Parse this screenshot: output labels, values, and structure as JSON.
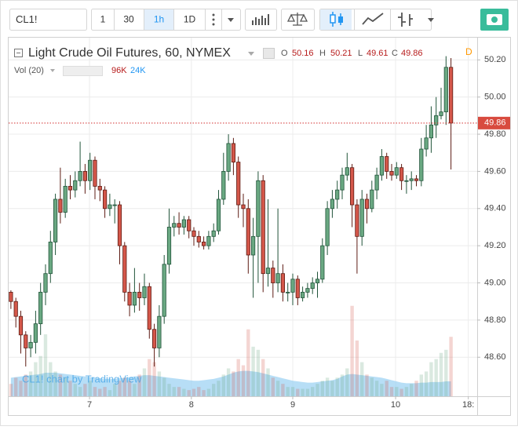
{
  "toolbar": {
    "symbol": "CL1!",
    "intervals": [
      "1",
      "30",
      "1h",
      "1D"
    ],
    "active_interval": "1h"
  },
  "chart_data": {
    "type": "candlestick",
    "title": "Light Crude Oil Futures, 60, NYMEX",
    "session_badge": "D",
    "ohlc_letters": [
      "O",
      "H",
      "L",
      "C"
    ],
    "watermark": "CL1! chart by TradingView",
    "up_color": "#6aa882",
    "up_edge": "#21543a",
    "down_color": "#d4574a",
    "down_edge": "#5e1c14",
    "grid": true,
    "x": [
      0,
      1,
      2,
      3,
      4,
      5,
      6,
      7,
      8,
      9,
      10,
      11,
      12,
      13,
      14,
      15,
      16,
      17,
      18,
      19,
      20,
      21,
      22,
      23,
      24,
      25,
      26,
      27,
      28,
      29,
      30,
      31,
      32,
      33,
      34,
      35,
      36,
      37,
      38,
      39,
      40,
      41,
      42,
      43,
      44,
      45,
      46,
      47,
      48,
      49,
      50,
      51,
      52,
      53,
      54,
      55,
      56,
      57,
      58,
      59,
      60,
      61,
      62,
      63,
      64,
      65,
      66,
      67,
      68,
      69,
      70,
      71,
      72,
      73,
      74,
      75,
      76,
      77,
      78,
      79,
      80,
      81,
      82,
      83,
      84,
      85,
      86,
      87,
      88,
      89
    ],
    "open": [
      48.95,
      48.9,
      48.82,
      48.72,
      48.65,
      48.68,
      48.78,
      48.95,
      49.05,
      49.22,
      49.45,
      49.38,
      49.52,
      49.5,
      49.55,
      49.6,
      49.55,
      49.66,
      49.52,
      49.5,
      49.4,
      49.42,
      49.42,
      49.2,
      48.95,
      48.88,
      48.95,
      48.92,
      48.98,
      48.75,
      48.65,
      48.82,
      49.1,
      49.3,
      49.32,
      49.3,
      49.34,
      49.28,
      49.25,
      49.22,
      49.2,
      49.25,
      49.28,
      49.45,
      49.6,
      49.75,
      49.65,
      49.42,
      49.4,
      49.15,
      49.25,
      49.55,
      49.05,
      49.08,
      49.0,
      49.05,
      48.95,
      48.95,
      49.02,
      48.92,
      48.95,
      48.97,
      49.0,
      49.02,
      49.2,
      49.4,
      49.45,
      49.5,
      49.58,
      49.62,
      49.42,
      49.25,
      49.45,
      49.4,
      49.5,
      49.58,
      49.68,
      49.6,
      49.58,
      49.62,
      49.55,
      49.55,
      49.56,
      49.55,
      49.72,
      49.78,
      49.85,
      49.9,
      49.92,
      50.16
    ],
    "high": [
      48.96,
      48.92,
      48.85,
      48.74,
      48.72,
      48.85,
      49.0,
      49.1,
      49.28,
      49.48,
      49.62,
      49.56,
      49.58,
      49.6,
      49.76,
      49.64,
      49.7,
      49.68,
      49.56,
      49.52,
      49.48,
      49.45,
      49.44,
      49.22,
      49.0,
      49.08,
      49.0,
      49.05,
      49.0,
      48.78,
      48.88,
      49.15,
      49.4,
      49.36,
      49.38,
      49.36,
      49.36,
      49.3,
      49.28,
      49.25,
      49.28,
      49.32,
      49.5,
      49.7,
      49.8,
      49.78,
      49.68,
      49.48,
      49.45,
      49.35,
      49.6,
      49.58,
      49.45,
      49.12,
      49.4,
      49.1,
      49.0,
      49.05,
      49.04,
      48.98,
      49.0,
      49.03,
      49.06,
      49.24,
      49.44,
      49.5,
      49.55,
      49.62,
      49.7,
      49.64,
      49.45,
      49.5,
      49.48,
      49.55,
      49.62,
      49.72,
      49.7,
      49.64,
      49.65,
      49.64,
      49.58,
      49.6,
      49.58,
      49.78,
      49.85,
      49.95,
      50.0,
      50.05,
      50.22,
      50.21
    ],
    "low": [
      48.86,
      48.76,
      48.62,
      48.55,
      48.6,
      48.62,
      48.72,
      48.88,
      49.0,
      49.15,
      49.32,
      49.35,
      49.45,
      49.46,
      49.52,
      49.48,
      49.5,
      49.45,
      49.44,
      49.35,
      49.36,
      49.32,
      49.1,
      48.9,
      48.82,
      48.84,
      48.85,
      48.88,
      48.7,
      48.55,
      48.6,
      48.78,
      49.05,
      49.25,
      49.26,
      49.26,
      49.24,
      49.2,
      49.19,
      49.18,
      49.18,
      49.22,
      49.26,
      49.42,
      49.55,
      49.58,
      49.35,
      49.3,
      49.05,
      48.92,
      49.0,
      48.95,
      48.98,
      48.92,
      48.95,
      48.9,
      48.9,
      48.88,
      48.88,
      48.9,
      48.92,
      48.94,
      48.92,
      49.0,
      49.15,
      49.35,
      49.4,
      49.45,
      49.55,
      49.3,
      49.05,
      49.2,
      49.32,
      49.38,
      49.45,
      49.55,
      49.56,
      49.55,
      49.56,
      49.5,
      49.48,
      49.5,
      49.52,
      49.52,
      49.68,
      49.7,
      49.78,
      49.88,
      49.85,
      49.61
    ],
    "close": [
      48.9,
      48.82,
      48.72,
      48.65,
      48.68,
      48.78,
      48.95,
      49.05,
      49.22,
      49.45,
      49.38,
      49.52,
      49.5,
      49.55,
      49.6,
      49.55,
      49.66,
      49.52,
      49.5,
      49.4,
      49.42,
      49.42,
      49.2,
      48.95,
      48.88,
      48.95,
      48.92,
      48.98,
      48.75,
      48.65,
      48.82,
      49.1,
      49.3,
      49.32,
      49.3,
      49.34,
      49.28,
      49.25,
      49.22,
      49.2,
      49.25,
      49.28,
      49.45,
      49.6,
      49.75,
      49.65,
      49.42,
      49.4,
      49.15,
      49.25,
      49.55,
      49.05,
      49.08,
      49.0,
      49.05,
      48.95,
      48.95,
      49.02,
      48.92,
      48.95,
      48.97,
      49.0,
      49.02,
      49.2,
      49.4,
      49.45,
      49.5,
      49.58,
      49.62,
      49.42,
      49.25,
      49.45,
      49.4,
      49.5,
      49.58,
      49.68,
      49.6,
      49.58,
      49.62,
      49.55,
      49.55,
      49.56,
      49.55,
      49.72,
      49.78,
      49.85,
      49.9,
      49.92,
      50.16,
      49.86
    ],
    "xlim": [
      -0.3,
      94.3
    ],
    "ylim": [
      48.39,
      50.29
    ],
    "xticks": [
      {
        "value": 15.9,
        "label": "7"
      },
      {
        "value": 36.5,
        "label": "8"
      },
      {
        "value": 57,
        "label": "9"
      },
      {
        "value": 77.8,
        "label": "10"
      },
      {
        "value": 92.5,
        "label": "18:"
      }
    ],
    "yticks": [
      {
        "value": 48.6,
        "label": "48.60"
      },
      {
        "value": 48.8,
        "label": "48.80"
      },
      {
        "value": 49.0,
        "label": "49.00"
      },
      {
        "value": 49.2,
        "label": "49.20"
      },
      {
        "value": 49.4,
        "label": "49.40"
      },
      {
        "value": 49.6,
        "label": "49.60"
      },
      {
        "value": 49.8,
        "label": "49.80"
      },
      {
        "value": 50.0,
        "label": "50.00"
      },
      {
        "value": 50.2,
        "label": "50.20"
      }
    ],
    "volume": {
      "name": "Vol (20)",
      "vlim": [
        0,
        190
      ],
      "value_label": "96K",
      "ma_label": "24K",
      "ma_color": "#9fd3f3",
      "values": [
        20,
        30,
        25,
        35,
        40,
        55,
        65,
        100,
        55,
        40,
        35,
        30,
        25,
        20,
        15,
        20,
        25,
        15,
        12,
        15,
        10,
        20,
        25,
        30,
        25,
        20,
        35,
        45,
        60,
        55,
        40,
        30,
        20,
        15,
        15,
        12,
        10,
        12,
        15,
        10,
        12,
        20,
        25,
        35,
        45,
        40,
        60,
        50,
        108,
        80,
        75,
        60,
        45,
        30,
        25,
        20,
        15,
        15,
        12,
        12,
        12,
        15,
        20,
        25,
        30,
        25,
        30,
        35,
        45,
        146,
        90,
        55,
        35,
        30,
        25,
        20,
        25,
        15,
        15,
        12,
        15,
        20,
        25,
        35,
        40,
        55,
        60,
        70,
        75,
        96
      ],
      "ma_values": [
        30,
        31,
        32,
        33,
        34,
        35,
        36,
        38,
        38,
        38,
        37,
        36,
        35,
        34,
        33,
        32,
        31,
        30,
        29,
        28,
        28,
        28,
        29,
        30,
        31,
        32,
        33,
        34,
        34,
        33,
        32,
        31,
        30,
        29,
        28,
        27,
        26,
        25,
        25,
        26,
        27,
        28,
        30,
        32,
        35,
        38,
        40,
        41,
        41,
        40,
        39,
        37,
        35,
        33,
        31,
        29,
        27,
        25,
        24,
        23,
        22,
        22,
        23,
        24,
        25,
        26,
        28,
        32,
        35,
        36,
        35,
        34,
        33,
        32,
        31,
        30,
        28,
        26,
        24,
        22,
        21,
        21,
        21,
        22,
        22,
        23,
        23,
        23,
        24,
        24
      ]
    }
  }
}
